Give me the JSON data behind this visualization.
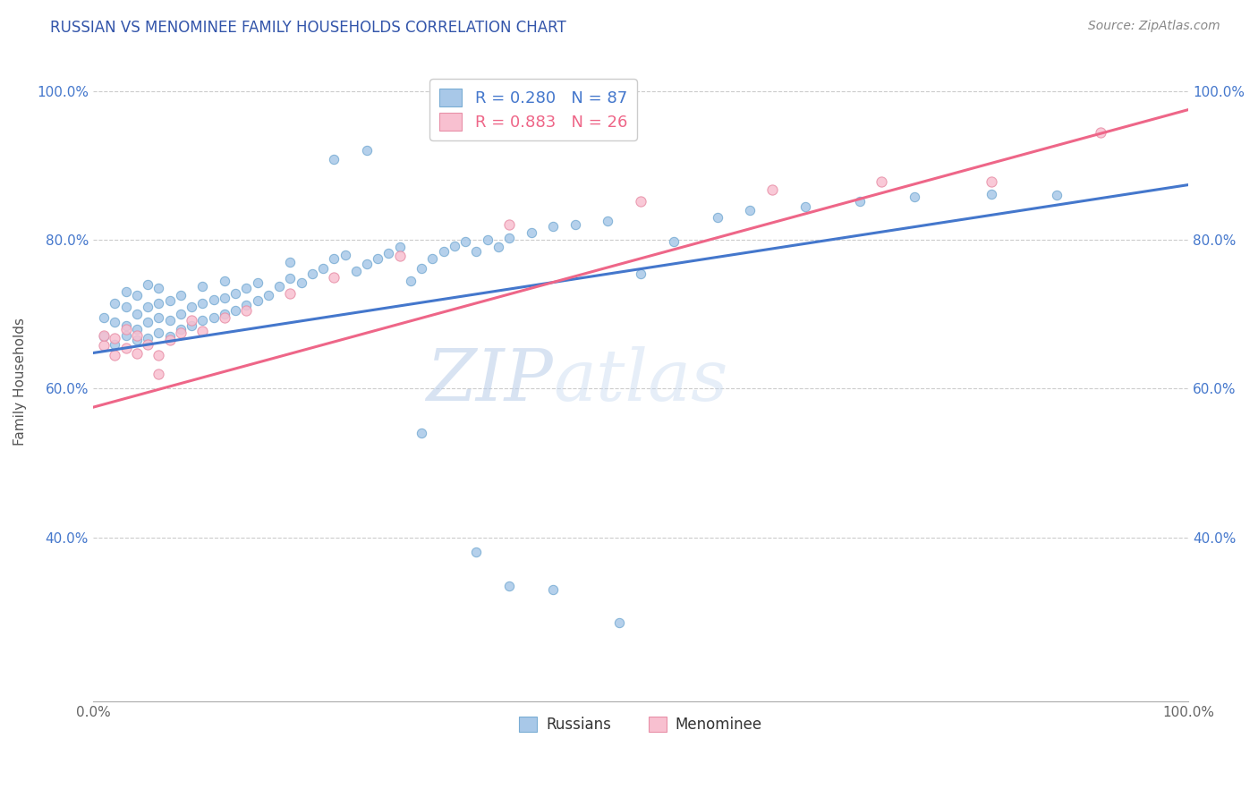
{
  "title": "RUSSIAN VS MENOMINEE FAMILY HOUSEHOLDS CORRELATION CHART",
  "source_text": "Source: ZipAtlas.com",
  "ylabel": "Family Households",
  "xlim": [
    0,
    1
  ],
  "ylim": [
    0.18,
    1.04
  ],
  "ytick_positions": [
    0.4,
    0.6,
    0.8,
    1.0
  ],
  "ytick_labels": [
    "40.0%",
    "60.0%",
    "80.0%",
    "100.0%"
  ],
  "xtick_positions": [
    0.0,
    1.0
  ],
  "xtick_labels": [
    "0.0%",
    "100.0%"
  ],
  "legend_labels": [
    "Russians",
    "Menominee"
  ],
  "russian_color": "#a8c8e8",
  "russian_edge_color": "#7aadd4",
  "menominee_color": "#f8c0d0",
  "menominee_edge_color": "#e890a8",
  "russian_line_color": "#4477cc",
  "menominee_line_color": "#ee6688",
  "watermark_zip_color": "#c8d8ee",
  "watermark_atlas_color": "#b8cce0",
  "title_color": "#3355aa",
  "source_color": "#888888",
  "grid_color": "#cccccc",
  "russian_line_x": [
    0.0,
    1.0
  ],
  "russian_line_y": [
    0.648,
    0.874
  ],
  "menominee_line_x": [
    0.0,
    1.0
  ],
  "menominee_line_y": [
    0.575,
    0.975
  ],
  "russian_scatter_x": [
    0.01,
    0.01,
    0.02,
    0.02,
    0.02,
    0.03,
    0.03,
    0.03,
    0.03,
    0.04,
    0.04,
    0.04,
    0.04,
    0.05,
    0.05,
    0.05,
    0.05,
    0.06,
    0.06,
    0.06,
    0.06,
    0.07,
    0.07,
    0.07,
    0.08,
    0.08,
    0.08,
    0.09,
    0.09,
    0.1,
    0.1,
    0.1,
    0.11,
    0.11,
    0.12,
    0.12,
    0.12,
    0.13,
    0.13,
    0.14,
    0.14,
    0.15,
    0.15,
    0.16,
    0.17,
    0.18,
    0.18,
    0.19,
    0.2,
    0.21,
    0.22,
    0.23,
    0.24,
    0.25,
    0.26,
    0.27,
    0.28,
    0.29,
    0.3,
    0.31,
    0.32,
    0.33,
    0.34,
    0.35,
    0.36,
    0.37,
    0.38,
    0.4,
    0.42,
    0.44,
    0.47,
    0.5,
    0.53,
    0.57,
    0.6,
    0.65,
    0.7,
    0.75,
    0.82,
    0.88,
    0.22,
    0.25,
    0.3,
    0.35,
    0.38,
    0.42,
    0.48
  ],
  "russian_scatter_y": [
    0.67,
    0.695,
    0.66,
    0.69,
    0.715,
    0.672,
    0.685,
    0.71,
    0.73,
    0.665,
    0.68,
    0.7,
    0.725,
    0.668,
    0.69,
    0.71,
    0.74,
    0.675,
    0.695,
    0.715,
    0.735,
    0.67,
    0.692,
    0.718,
    0.68,
    0.7,
    0.725,
    0.685,
    0.71,
    0.692,
    0.715,
    0.738,
    0.695,
    0.72,
    0.7,
    0.722,
    0.745,
    0.705,
    0.728,
    0.712,
    0.735,
    0.718,
    0.742,
    0.725,
    0.738,
    0.748,
    0.77,
    0.742,
    0.755,
    0.762,
    0.775,
    0.78,
    0.758,
    0.768,
    0.775,
    0.782,
    0.79,
    0.745,
    0.762,
    0.775,
    0.785,
    0.792,
    0.798,
    0.785,
    0.8,
    0.79,
    0.802,
    0.81,
    0.818,
    0.82,
    0.825,
    0.755,
    0.798,
    0.83,
    0.84,
    0.845,
    0.852,
    0.858,
    0.862,
    0.86,
    0.908,
    0.92,
    0.54,
    0.38,
    0.335,
    0.33,
    0.285
  ],
  "menominee_scatter_x": [
    0.01,
    0.01,
    0.02,
    0.02,
    0.03,
    0.03,
    0.04,
    0.04,
    0.05,
    0.06,
    0.06,
    0.07,
    0.08,
    0.09,
    0.1,
    0.12,
    0.14,
    0.18,
    0.22,
    0.28,
    0.38,
    0.5,
    0.62,
    0.72,
    0.82,
    0.92
  ],
  "menominee_scatter_y": [
    0.658,
    0.672,
    0.645,
    0.668,
    0.655,
    0.68,
    0.648,
    0.672,
    0.66,
    0.62,
    0.645,
    0.665,
    0.675,
    0.692,
    0.678,
    0.695,
    0.705,
    0.728,
    0.75,
    0.778,
    0.82,
    0.852,
    0.868,
    0.878,
    0.878,
    0.945
  ]
}
